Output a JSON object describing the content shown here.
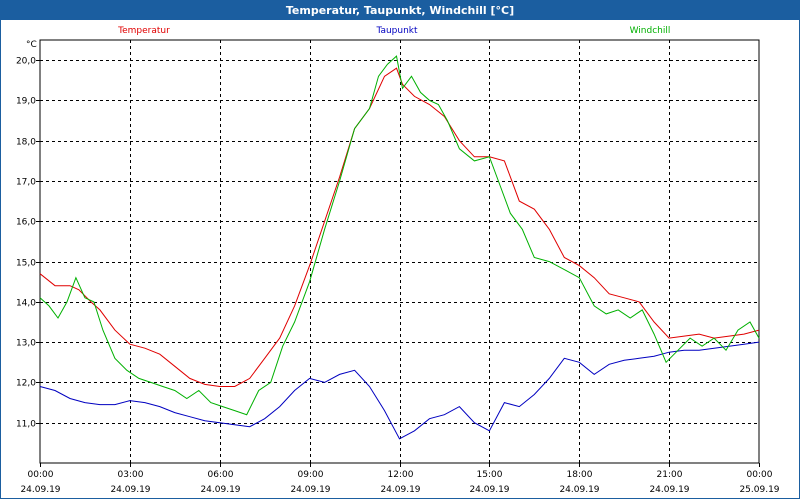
{
  "window": {
    "title": "Temperatur, Taupunkt, Windchill [°C]"
  },
  "chart_data": {
    "type": "line",
    "title": "Temperatur, Taupunkt, Windchill [°C]",
    "ylabel": "°C",
    "ylim": [
      10.0,
      20.5
    ],
    "xlim_hours": [
      0,
      24
    ],
    "yticks": [
      "11,0",
      "12,0",
      "13,0",
      "14,0",
      "15,0",
      "16,0",
      "17,0",
      "18,0",
      "19,0",
      "20,0"
    ],
    "ytick_values": [
      11,
      12,
      13,
      14,
      15,
      16,
      17,
      18,
      19,
      20
    ],
    "xticks": [
      {
        "time": "00:00",
        "date": "24.09.19"
      },
      {
        "time": "03:00",
        "date": "24.09.19"
      },
      {
        "time": "06:00",
        "date": "24.09.19"
      },
      {
        "time": "09:00",
        "date": "24.09.19"
      },
      {
        "time": "12:00",
        "date": "24.09.19"
      },
      {
        "time": "15:00",
        "date": "24.09.19"
      },
      {
        "time": "18:00",
        "date": "24.09.19"
      },
      {
        "time": "21:00",
        "date": "24.09.19"
      },
      {
        "time": "00:00",
        "date": "25.09.19"
      }
    ],
    "grid": true,
    "series": [
      {
        "name": "Temperatur",
        "color": "#e00000",
        "x": [
          0,
          0.5,
          1,
          1.3,
          1.7,
          2,
          2.5,
          3,
          3.5,
          4,
          4.5,
          5,
          5.5,
          6,
          6.5,
          7,
          7.5,
          8,
          8.5,
          9,
          9.5,
          10,
          10.5,
          11,
          11.5,
          11.9,
          12.1,
          12.5,
          13,
          13.5,
          14,
          14.5,
          15,
          15.5,
          16,
          16.5,
          17,
          17.5,
          18,
          18.5,
          19,
          19.5,
          20,
          20.5,
          21,
          21.5,
          22,
          22.5,
          23,
          23.5,
          24
        ],
        "y": [
          14.7,
          14.4,
          14.4,
          14.3,
          14.0,
          13.8,
          13.3,
          12.95,
          12.85,
          12.7,
          12.4,
          12.1,
          11.95,
          11.9,
          11.9,
          12.1,
          12.6,
          13.1,
          13.9,
          14.9,
          16.0,
          17.1,
          18.3,
          18.8,
          19.6,
          19.8,
          19.4,
          19.1,
          18.9,
          18.6,
          18.0,
          17.6,
          17.6,
          17.5,
          16.5,
          16.3,
          15.8,
          15.1,
          14.9,
          14.6,
          14.2,
          14.1,
          14.0,
          13.5,
          13.1,
          13.15,
          13.2,
          13.1,
          13.15,
          13.2,
          13.3
        ]
      },
      {
        "name": "Taupunkt",
        "color": "#0000c0",
        "x": [
          0,
          0.5,
          1,
          1.5,
          2,
          2.5,
          3,
          3.5,
          4,
          4.5,
          5,
          5.5,
          6,
          6.5,
          7,
          7.5,
          8,
          8.5,
          9,
          9.5,
          10,
          10.5,
          11,
          11.5,
          12,
          12.5,
          13,
          13.5,
          14,
          14.5,
          15,
          15.5,
          16,
          16.5,
          17,
          17.5,
          18,
          18.5,
          19,
          19.5,
          20,
          20.5,
          21,
          21.5,
          22,
          22.5,
          23,
          23.5,
          24
        ],
        "y": [
          11.9,
          11.8,
          11.6,
          11.5,
          11.45,
          11.45,
          11.55,
          11.5,
          11.4,
          11.25,
          11.15,
          11.05,
          11.0,
          10.95,
          10.9,
          11.1,
          11.4,
          11.8,
          12.1,
          12.0,
          12.2,
          12.3,
          11.9,
          11.3,
          10.6,
          10.8,
          11.1,
          11.2,
          11.4,
          11.0,
          10.8,
          11.5,
          11.4,
          11.7,
          12.1,
          12.6,
          12.5,
          12.2,
          12.45,
          12.55,
          12.6,
          12.65,
          12.75,
          12.8,
          12.8,
          12.85,
          12.9,
          12.95,
          13.0
        ]
      },
      {
        "name": "Windchill",
        "color": "#00b000",
        "x": [
          0,
          0.3,
          0.6,
          0.9,
          1.2,
          1.5,
          1.8,
          2.1,
          2.5,
          2.9,
          3.3,
          3.7,
          4.1,
          4.5,
          4.9,
          5.3,
          5.7,
          6.1,
          6.5,
          6.9,
          7.3,
          7.7,
          8.1,
          8.5,
          9,
          9.5,
          10,
          10.5,
          11,
          11.3,
          11.6,
          11.9,
          12.1,
          12.4,
          12.7,
          13,
          13.3,
          13.6,
          14,
          14.5,
          15,
          15.3,
          15.7,
          16.1,
          16.5,
          17,
          17.5,
          18,
          18.5,
          18.9,
          19.3,
          19.7,
          20.1,
          20.5,
          20.9,
          21.3,
          21.7,
          22.1,
          22.5,
          22.9,
          23.3,
          23.7,
          24
        ],
        "y": [
          14.1,
          13.9,
          13.6,
          14.0,
          14.6,
          14.1,
          14.0,
          13.3,
          12.6,
          12.3,
          12.1,
          12.0,
          11.9,
          11.8,
          11.6,
          11.8,
          11.5,
          11.4,
          11.3,
          11.2,
          11.8,
          12.0,
          12.9,
          13.5,
          14.5,
          15.8,
          17.0,
          18.3,
          18.8,
          19.6,
          19.9,
          20.1,
          19.3,
          19.6,
          19.2,
          19.0,
          18.9,
          18.5,
          17.8,
          17.5,
          17.6,
          17.0,
          16.2,
          15.8,
          15.1,
          15.0,
          14.8,
          14.6,
          13.9,
          13.7,
          13.8,
          13.6,
          13.8,
          13.2,
          12.5,
          12.8,
          13.1,
          12.9,
          13.1,
          12.8,
          13.3,
          13.5,
          13.1
        ]
      }
    ]
  }
}
